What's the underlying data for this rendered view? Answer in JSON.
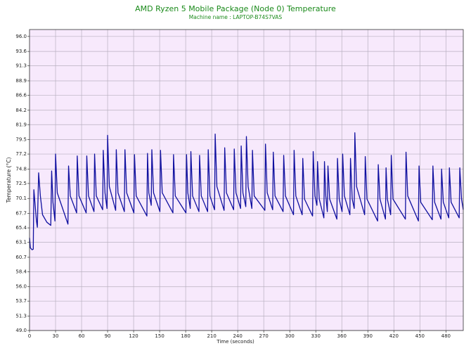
{
  "chart_data": {
    "type": "line",
    "title": "AMD Ryzen 5 Mobile Package (Node 0) Temperature",
    "subtitle": "Machine name : LAPTOP-B74S7VAS",
    "x_label": "Time (seconds)",
    "y_label": "Temperature (°C)",
    "xlim": [
      0,
      500
    ],
    "ylim": [
      49,
      97.1
    ],
    "xticks": [
      0,
      30,
      60,
      90,
      120,
      150,
      180,
      210,
      240,
      270,
      300,
      330,
      360,
      390,
      420,
      450,
      480
    ],
    "yticks": [
      {
        "value": 49,
        "label": "49.0"
      },
      51.3,
      53.7,
      {
        "value": 56,
        "label": "56.0"
      },
      58.4,
      60.7,
      63.1,
      65.4,
      67.7,
      70.1,
      72.5,
      74.8,
      77.2,
      79.5,
      81.9,
      84.2,
      86.6,
      88.9,
      91.3,
      93.6,
      {
        "value": 96,
        "label": "96.0"
      }
    ],
    "grid": true,
    "background": "#f7e9fc",
    "series": [
      {
        "name": "Temperature",
        "color": "#1010a0",
        "x": [
          0,
          1,
          3,
          4.3,
          5,
          6.5,
          8,
          9,
          10.5,
          12.5,
          15,
          20,
          24.5,
          25.5,
          27,
          29.3,
          30,
          32,
          44.3,
          45,
          47,
          54.3,
          55,
          57,
          65.3,
          66,
          68,
          74.3,
          75,
          77,
          84.3,
          85,
          87,
          89.3,
          90,
          92,
          99.3,
          100,
          102,
          109.3,
          110,
          112,
          120.3,
          121,
          123,
          135.3,
          136,
          137.5,
          140.3,
          141,
          143,
          150.3,
          151,
          153,
          165.3,
          166,
          168,
          180.3,
          181,
          182.5,
          185.3,
          186,
          188,
          195.3,
          196,
          198,
          205.3,
          206,
          208,
          213.3,
          214,
          216,
          224.3,
          225,
          227,
          235.3,
          236,
          238,
          243.3,
          244,
          246,
          249.3,
          250,
          252,
          256.3,
          257,
          259,
          271.3,
          272,
          274,
          280.3,
          281,
          283,
          292.3,
          293,
          295,
          304.3,
          305,
          307,
          314.3,
          315,
          317,
          326.3,
          327,
          329,
          331.3,
          332,
          334,
          339.3,
          340,
          341.5,
          343.3,
          344,
          346,
          354.3,
          355,
          357,
          360.3,
          361,
          363,
          369.3,
          370,
          372,
          374.3,
          375,
          377,
          386.3,
          387,
          389,
          401.3,
          402,
          404,
          410.3,
          411,
          412.5,
          416.3,
          417,
          419,
          433.3,
          434,
          436,
          448.3,
          449,
          451,
          464.3,
          465,
          467,
          474.3,
          475,
          477,
          483.3,
          484,
          486,
          495.3,
          496,
          498,
          500
        ],
        "values": [
          63.8,
          62.2,
          61.9,
          62.0,
          71.5,
          69,
          66.5,
          65.5,
          74.2,
          70.5,
          67.5,
          66.3,
          65.8,
          74.5,
          69.5,
          66.5,
          77.2,
          71,
          66.0,
          75.3,
          70.5,
          67.8,
          76.9,
          70.5,
          67.8,
          76.9,
          70.5,
          68.0,
          77.2,
          70.5,
          68.3,
          77.8,
          71,
          68.5,
          80.2,
          72,
          68.2,
          77.9,
          71,
          68.0,
          77.9,
          71,
          67.8,
          77.1,
          70.5,
          67.3,
          77.3,
          71,
          69,
          77.9,
          71,
          68,
          77.8,
          71,
          67.8,
          77.1,
          70.5,
          67.8,
          77.1,
          71,
          68.5,
          77.6,
          70.5,
          68,
          77.0,
          70.5,
          68,
          77.9,
          70.5,
          68.3,
          80.4,
          72,
          68.2,
          78.2,
          71,
          68.3,
          78.0,
          71,
          68.5,
          78.5,
          71,
          68.8,
          80.0,
          72,
          68.5,
          77.8,
          70.5,
          68.2,
          78.8,
          71,
          68.3,
          77.5,
          70.5,
          68,
          77.0,
          70.5,
          67.5,
          77.8,
          70.5,
          67.5,
          76.5,
          70,
          67.3,
          77.6,
          70.5,
          69,
          76.0,
          70,
          67,
          76.0,
          70.5,
          68,
          75.3,
          70,
          66.8,
          76.5,
          70,
          68,
          77.2,
          70.5,
          67.5,
          76.5,
          70,
          68.5,
          80.6,
          72,
          67.5,
          76.8,
          70,
          66.5,
          75.5,
          70,
          66.8,
          75.0,
          70,
          67.5,
          77.0,
          70,
          66.8,
          77.5,
          70.5,
          66.5,
          75.3,
          69.5,
          66.7,
          75.3,
          69.5,
          66.8,
          74.8,
          69.5,
          67,
          75.0,
          69.5,
          67,
          75.0,
          70,
          68.3
        ]
      }
    ]
  }
}
